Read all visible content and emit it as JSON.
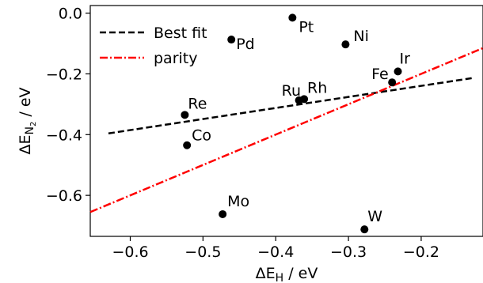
{
  "chart_data": {
    "type": "scatter",
    "xlim": [
      -0.655,
      -0.115
    ],
    "ylim": [
      -0.735,
      0.025
    ],
    "xticks": [
      -0.6,
      -0.5,
      -0.4,
      -0.3,
      -0.2
    ],
    "xtick_labels": [
      "−0.6",
      "−0.5",
      "−0.4",
      "−0.3",
      "−0.2"
    ],
    "yticks": [
      0.0,
      -0.2,
      -0.4,
      -0.6
    ],
    "ytick_labels": [
      "0.0",
      "−0.2",
      "−0.4",
      "−0.6"
    ],
    "xlabel": {
      "main": "ΔE",
      "sub": "H",
      "unit": " / eV"
    },
    "ylabel": {
      "main": "ΔE",
      "sub": "N",
      "subsub": "2",
      "unit": " / eV"
    },
    "points": [
      {
        "label": "Pt",
        "x": -0.377,
        "y": -0.015
      },
      {
        "label": "Pd",
        "x": -0.461,
        "y": -0.087
      },
      {
        "label": "Ni",
        "x": -0.304,
        "y": -0.103
      },
      {
        "label": "Ir",
        "x": -0.232,
        "y": -0.192
      },
      {
        "label": "Fe",
        "x": -0.24,
        "y": -0.228
      },
      {
        "label": "Ru",
        "x": -0.368,
        "y": -0.287
      },
      {
        "label": "Rh",
        "x": -0.361,
        "y": -0.283
      },
      {
        "label": "Re",
        "x": -0.525,
        "y": -0.335
      },
      {
        "label": "Co",
        "x": -0.522,
        "y": -0.435
      },
      {
        "label": "Mo",
        "x": -0.473,
        "y": -0.662
      },
      {
        "label": "W",
        "x": -0.278,
        "y": -0.712
      }
    ],
    "series": [
      {
        "name": "Best fit",
        "kind": "line",
        "color": "#000000",
        "dash": "dashed",
        "x": [
          -0.63,
          -0.13
        ],
        "y": [
          -0.396,
          -0.214
        ]
      },
      {
        "name": "parity",
        "kind": "line",
        "color": "#ff0000",
        "dash": "dashdot",
        "x": [
          -0.655,
          -0.115
        ],
        "y": [
          -0.655,
          -0.115
        ]
      }
    ],
    "legend": {
      "placement": "top-left"
    },
    "grid": false
  }
}
